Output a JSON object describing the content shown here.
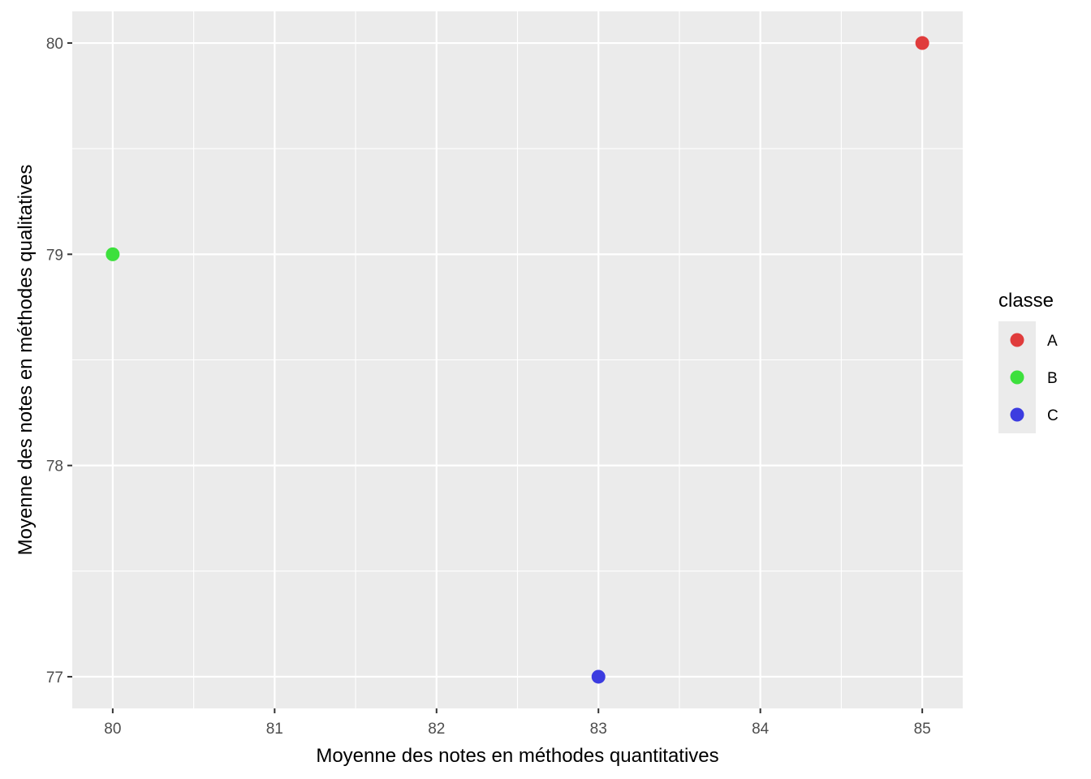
{
  "chart_data": {
    "type": "scatter",
    "xlabel": "Moyenne des notes en méthodes quantitatives",
    "ylabel": "Moyenne des notes en méthodes qualitatives",
    "xlim": [
      79.75,
      85.25
    ],
    "ylim": [
      76.85,
      80.15
    ],
    "x_ticks": [
      "80",
      "81",
      "82",
      "83",
      "84",
      "85"
    ],
    "y_ticks": [
      "77",
      "78",
      "79",
      "80"
    ],
    "grid": true,
    "legend": {
      "title": "classe",
      "position": "right",
      "entries": [
        "A",
        "B",
        "C"
      ]
    },
    "series": [
      {
        "name": "A",
        "color": "#E03C3C",
        "points": [
          {
            "x": 85,
            "y": 80
          }
        ]
      },
      {
        "name": "B",
        "color": "#3DE03D",
        "points": [
          {
            "x": 80,
            "y": 79
          }
        ]
      },
      {
        "name": "C",
        "color": "#3C3CE0",
        "points": [
          {
            "x": 83,
            "y": 77
          }
        ]
      }
    ],
    "panel_background": "#EBEBEB",
    "grid_color": "#FFFFFF"
  }
}
